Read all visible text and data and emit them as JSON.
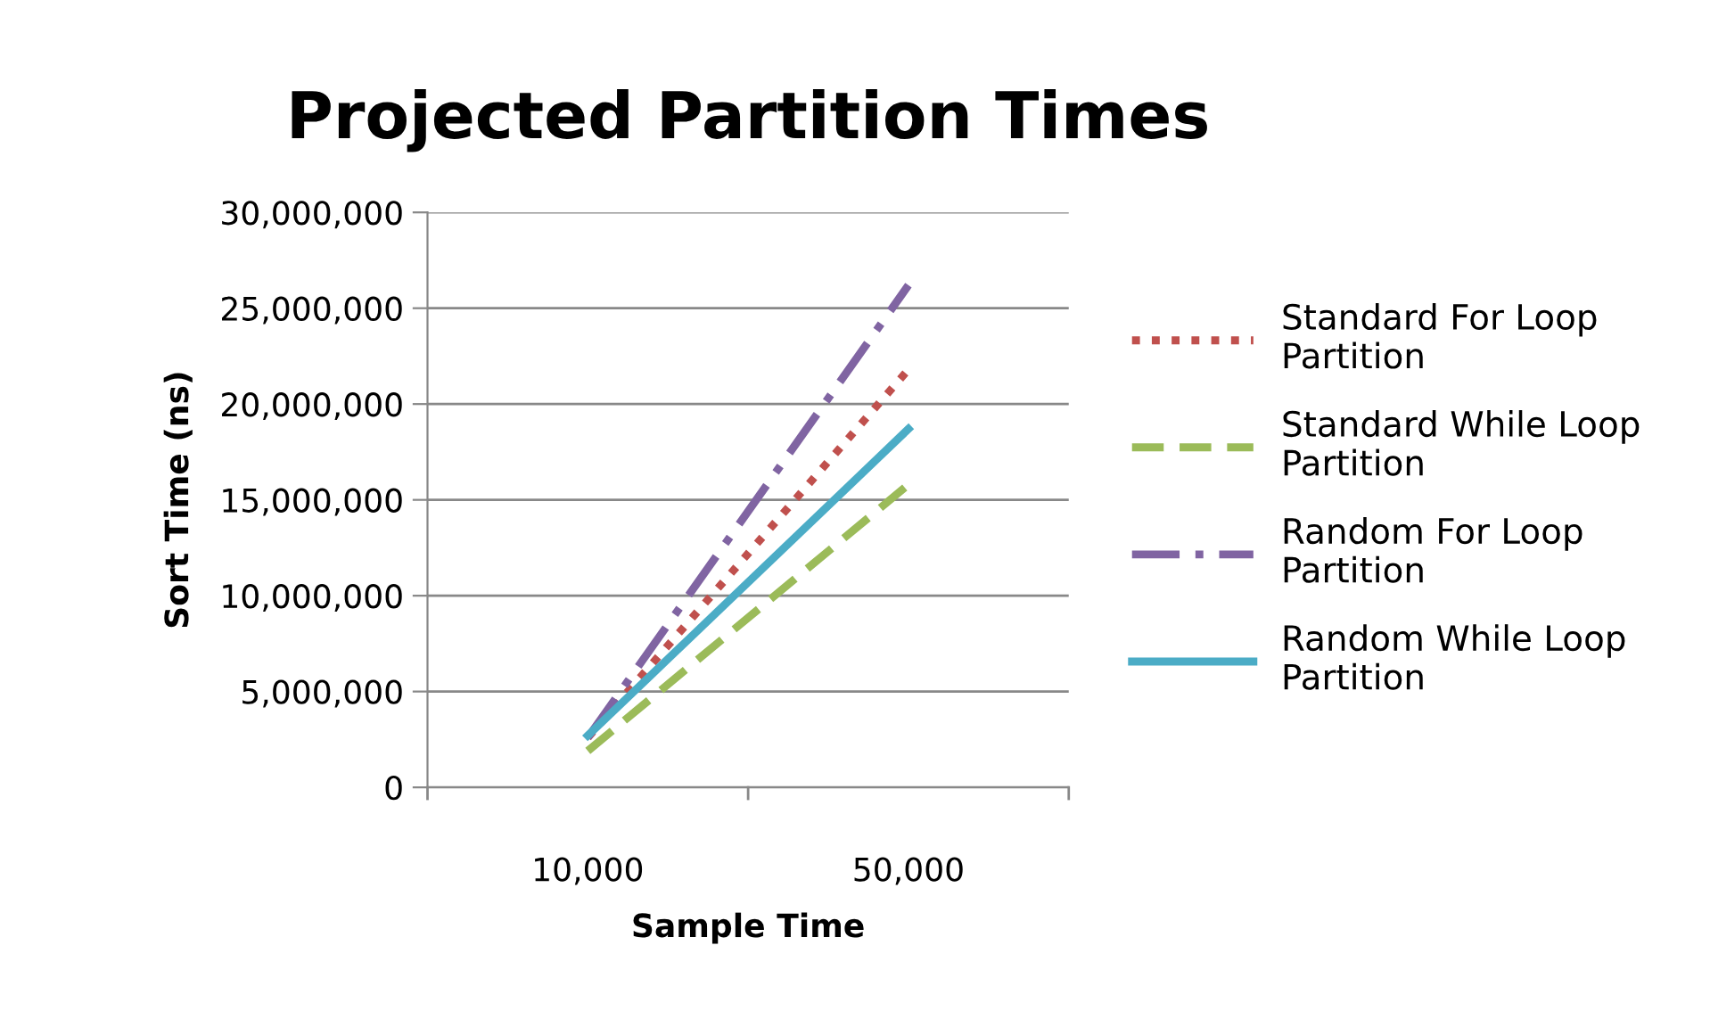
{
  "chart_data": {
    "type": "line",
    "title": "Projected Partition Times",
    "xlabel": "Sample Time",
    "ylabel": "Sort Time (ns)",
    "categories": [
      "10,000",
      "50,000"
    ],
    "series": [
      {
        "name": "Standard For Loop Partition",
        "color": "#c0504d",
        "line_style": "dotted",
        "values": [
          2600000,
          21800000
        ]
      },
      {
        "name": "Standard While Loop Partition",
        "color": "#9bbb59",
        "line_style": "dashed",
        "values": [
          1900000,
          15800000
        ]
      },
      {
        "name": "Random For Loop Partition",
        "color": "#8064a2",
        "line_style": "dashdot",
        "values": [
          2600000,
          26200000
        ]
      },
      {
        "name": "Random While Loop Partition",
        "color": "#4bacc6",
        "line_style": "solid",
        "values": [
          2700000,
          18700000
        ]
      }
    ],
    "ylim": [
      0,
      30000000
    ],
    "yticks": [
      {
        "value": 0,
        "label": "0"
      },
      {
        "value": 5000000,
        "label": "5,000,000"
      },
      {
        "value": 10000000,
        "label": "10,000,000"
      },
      {
        "value": 15000000,
        "label": "15,000,000"
      },
      {
        "value": 20000000,
        "label": "20,000,000"
      },
      {
        "value": 25000000,
        "label": "25,000,000"
      },
      {
        "value": 30000000,
        "label": "30,000,000"
      }
    ],
    "grid": "y",
    "legend": "right",
    "marker": "none"
  }
}
